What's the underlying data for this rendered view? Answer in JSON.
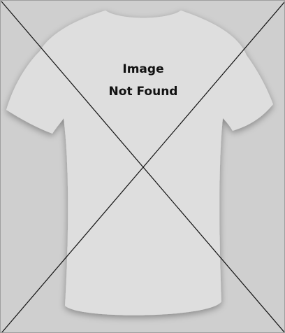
{
  "placeholder": {
    "line1": "Image",
    "line2": "Not Found",
    "icon": "broken-image-icon"
  },
  "colors": {
    "background": "#cfcfcf",
    "shirt": "#e0e0e0",
    "shirt_shadow": "#bdbdbd",
    "cross_line": "#111111",
    "text": "#111111"
  }
}
